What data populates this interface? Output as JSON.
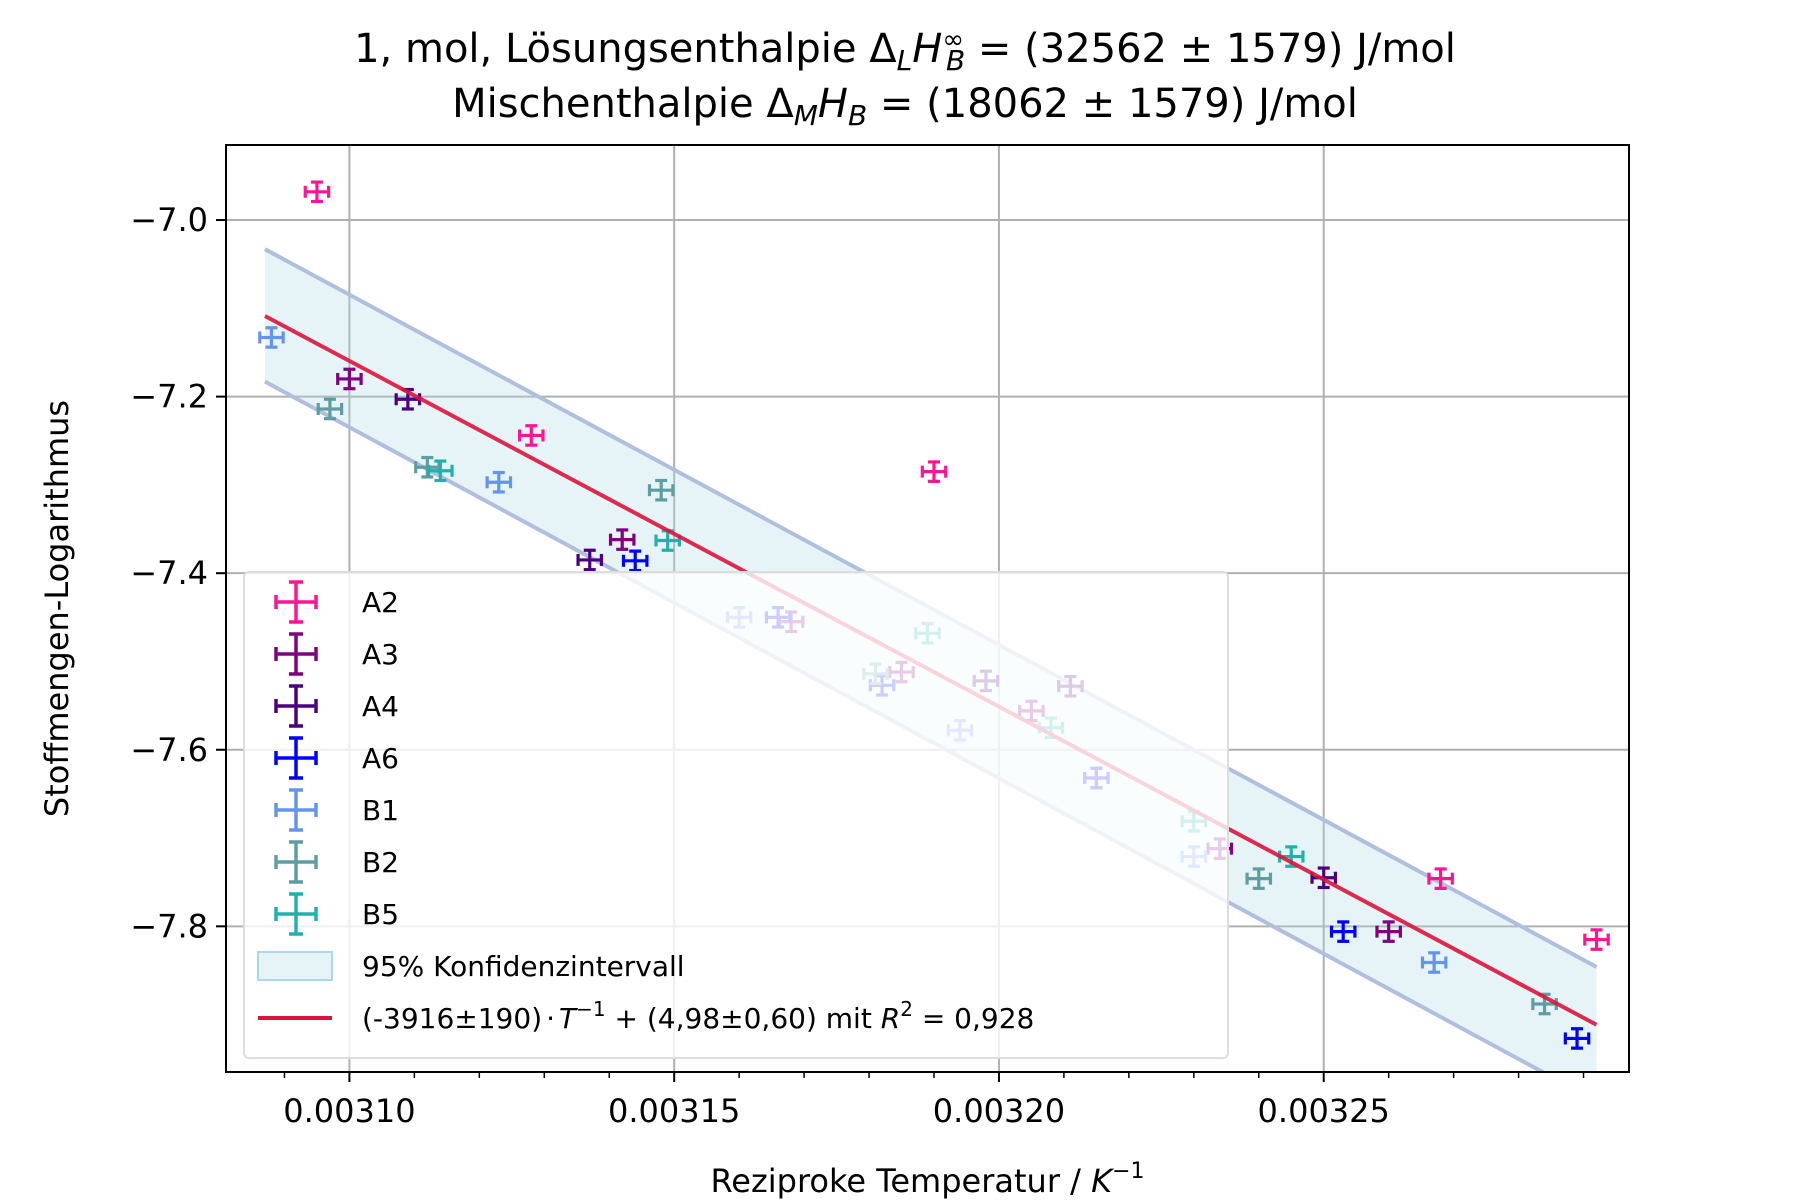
{
  "chart_data": {
    "type": "scatter",
    "title_line1": "1, mol, Lösungsenthalpie Δ_L H_B^∞ = (32562 ± 1579) J/mol",
    "title_line2": "Mischenthalpie Δ_M H_B =  (18062 ± 1579) J/mol",
    "title_parts": {
      "l1_prefix": "1, mol, Lösungsenthalpie ",
      "l1_value": " = (32562 ± 1579) J/mol",
      "l2_prefix": "Mischenthalpie ",
      "l2_value": " =  (18062 ± 1579) J/mol",
      "delta": "Δ",
      "H": "H",
      "sub_L": "L",
      "sub_M": "M",
      "sub_B": "B",
      "sup_inf": "∞"
    },
    "xlabel": "Reziproke Temperatur / K⁻¹",
    "xlabel_parts": {
      "text": "Reziproke Temperatur / ",
      "unit": "K",
      "exp": "−1"
    },
    "ylabel": "Stoffmengen-Logarithmus",
    "xlim": [
      0.003081,
      0.003297
    ],
    "ylim": [
      -7.965,
      -6.915
    ],
    "xticks": [
      0.0031,
      0.00315,
      0.0032,
      0.00325
    ],
    "xtick_labels": [
      "0.00310",
      "0.00315",
      "0.00320",
      "0.00325"
    ],
    "yticks": [
      -7.0,
      -7.2,
      -7.4,
      -7.6,
      -7.8
    ],
    "ytick_labels": [
      "−7.0",
      "−7.2",
      "−7.4",
      "−7.6",
      "−7.8"
    ],
    "grid": true,
    "legend_location": "lower-left",
    "xerr": 1.8e-06,
    "yerr": 0.011,
    "series": [
      {
        "name": "A2",
        "color": "#ff1493",
        "points": [
          [
            0.003095,
            -6.968
          ],
          [
            0.003128,
            -7.244
          ],
          [
            0.00319,
            -7.285
          ],
          [
            0.003215,
            -7.632
          ],
          [
            0.003268,
            -7.746
          ],
          [
            0.003292,
            -7.815
          ]
        ]
      },
      {
        "name": "A3",
        "color": "#800080",
        "points": [
          [
            0.0031,
            -7.18
          ],
          [
            0.003142,
            -7.362
          ],
          [
            0.003168,
            -7.455
          ],
          [
            0.003185,
            -7.512
          ],
          [
            0.003205,
            -7.556
          ],
          [
            0.003234,
            -7.712
          ],
          [
            0.00326,
            -7.806
          ]
        ]
      },
      {
        "name": "A4",
        "color": "#4b0082",
        "points": [
          [
            0.003109,
            -7.203
          ],
          [
            0.003137,
            -7.385
          ],
          [
            0.003198,
            -7.522
          ],
          [
            0.003211,
            -7.528
          ],
          [
            0.00325,
            -7.745
          ]
        ]
      },
      {
        "name": "A6",
        "color": "#0000ff",
        "points": [
          [
            0.003144,
            -7.386
          ],
          [
            0.003166,
            -7.45
          ],
          [
            0.003182,
            -7.527
          ],
          [
            0.003215,
            -7.632
          ],
          [
            0.003253,
            -7.806
          ],
          [
            0.003289,
            -7.927
          ]
        ]
      },
      {
        "name": "B1",
        "color": "#6495ed",
        "points": [
          [
            0.003088,
            -7.133
          ],
          [
            0.003123,
            -7.297
          ],
          [
            0.00316,
            -7.45
          ],
          [
            0.003194,
            -7.578
          ],
          [
            0.00323,
            -7.721
          ],
          [
            0.003267,
            -7.841
          ]
        ]
      },
      {
        "name": "B2",
        "color": "#5f9ea0",
        "points": [
          [
            0.003097,
            -7.214
          ],
          [
            0.003112,
            -7.28
          ],
          [
            0.003148,
            -7.306
          ],
          [
            0.003181,
            -7.514
          ],
          [
            0.00324,
            -7.746
          ],
          [
            0.003284,
            -7.888
          ]
        ]
      },
      {
        "name": "B5",
        "color": "#20b2aa",
        "points": [
          [
            0.003114,
            -7.284
          ],
          [
            0.003149,
            -7.363
          ],
          [
            0.003189,
            -7.468
          ],
          [
            0.003208,
            -7.575
          ],
          [
            0.00323,
            -7.681
          ],
          [
            0.003245,
            -7.721
          ]
        ]
      }
    ],
    "fit": {
      "label": "(-3916±190)·T⁻¹ + (4,98±0,60) mit R² = 0,928",
      "label_parts": {
        "coef": "(-3916±190)",
        "dot": "·",
        "var": "T",
        "exp": "−1",
        "mid": " + (4,98±0,60) mit ",
        "r": "R",
        "r_exp": "2",
        "r_val": " = 0,928"
      },
      "color": "#dc143c",
      "slope": -3916,
      "intercept": 4.98,
      "x_range": [
        0.003087,
        0.003292
      ]
    },
    "confidence_band": {
      "label": "95% Konfidenzintervall",
      "fill_color": "#add8e6",
      "edge_color": "#b0c0dc",
      "upper": [
        [
          0.003087,
          -7.033
        ],
        [
          0.003292,
          -7.846
        ]
      ],
      "lower": [
        [
          0.003087,
          -7.183
        ],
        [
          0.003292,
          -7.998
        ]
      ]
    }
  }
}
